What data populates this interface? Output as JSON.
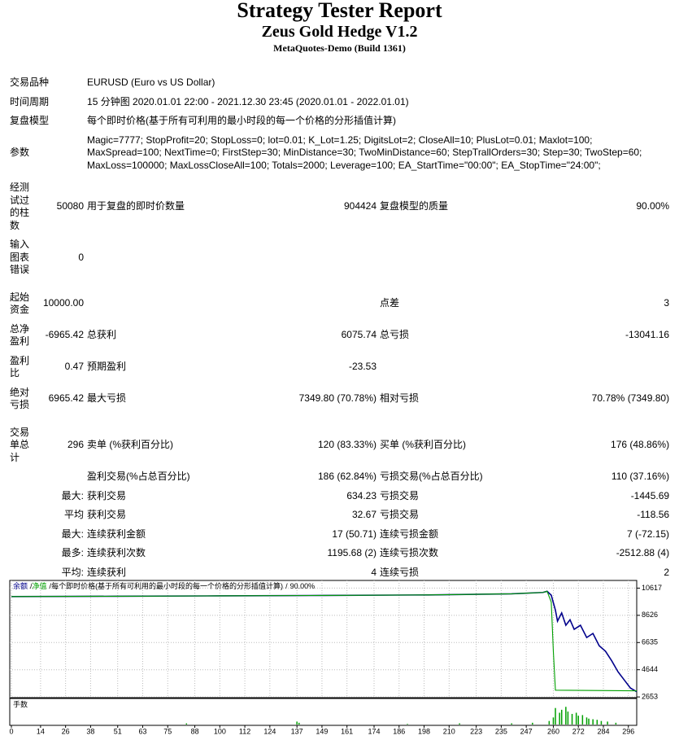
{
  "header": {
    "title": "Strategy Tester Report",
    "subtitle": "Zeus Gold Hedge V1.2",
    "build": "MetaQuotes-Demo (Build 1361)"
  },
  "rows": [
    [
      "交易品种",
      "EURUSD (Euro vs US Dollar)"
    ],
    [
      "时间周期",
      "15 分钟图 2020.01.01 22:00 - 2021.12.30 23:45 (2020.01.01 - 2022.01.01)"
    ],
    [
      "复盘模型",
      "每个即时价格(基于所有可利用的最小时段的每一个价格的分形插值计算)"
    ],
    [
      "参数",
      [
        "Magic=7777; StopProfit=20; StopLoss=0; lot=0.01; K_Lot=1.25; DigitsLot=2; CloseAll=10; PlusLot=0.01; Maxlot=100;",
        "MaxSpread=100; NextTime=0; FirstStep=30; MinDistance=30; TwoMinDistance=60; StepTrallOrders=30; Step=30; TwoStep=60;",
        "MaxLoss=100000; MaxLossCloseAll=100; Totals=2000; Leverage=100; EA_StartTime=\"00:00\"; EA_StopTime=\"24:00\";"
      ]
    ],
    [
      "经测试过的柱数",
      "50080",
      "用于复盘的即时价数量",
      "904424",
      "复盘模型的质量",
      "90.00%"
    ],
    [
      "输入图表错误",
      "0"
    ],
    [
      "起始资金",
      "10000.00",
      "点差",
      "3"
    ],
    [
      "总净盈利",
      "-6965.42",
      "总获利",
      "6075.74",
      "总亏损",
      "-13041.16"
    ],
    [
      "盈利比",
      "0.47",
      "预期盈利",
      "-23.53"
    ],
    [
      "绝对亏损",
      "6965.42",
      "最大亏损",
      "7349.80 (70.78%)",
      "相对亏损",
      "70.78% (7349.80)"
    ],
    [
      "交易单总计",
      "296",
      "卖单 (%获利百分比)",
      "120 (83.33%)",
      "买单 (%获利百分比)",
      "176 (48.86%)"
    ],
    [
      "盈利交易(%占总百分比)",
      "186 (62.84%)",
      "亏损交易(%占总百分比)",
      "110 (37.16%)"
    ],
    [
      "最大:",
      "获利交易",
      "634.23",
      "亏损交易",
      "-1445.69"
    ],
    [
      "平均",
      "获利交易",
      "32.67",
      "亏损交易",
      "-118.56"
    ],
    [
      "最大:",
      "连续获利金额",
      "17 (50.71)",
      "连续亏损金额",
      "7 (-72.15)"
    ],
    [
      "最多:",
      "连续获利次数",
      "1195.68 (2)",
      "连续亏损次数",
      "-2512.88 (4)"
    ],
    [
      "平均:",
      "连续获利",
      "4",
      "连续亏损",
      "2"
    ]
  ],
  "chart_data": {
    "type": "line",
    "legend_separator": "/",
    "legend_model": "每个即时价格(基于所有可利用的最小时段的每一个价格的分形插值计算)",
    "legend_quality": "90.00%",
    "xlim": [
      0,
      300
    ],
    "xticks": [
      0,
      14,
      26,
      38,
      51,
      63,
      75,
      88,
      100,
      112,
      124,
      137,
      149,
      161,
      174,
      186,
      198,
      210,
      223,
      235,
      247,
      260,
      272,
      284,
      296
    ],
    "ylim": [
      2600,
      11000
    ],
    "yticks": [
      2653,
      4644,
      6635,
      8626,
      10617
    ],
    "grid": true,
    "series": [
      {
        "name": "余额",
        "color": "#00008b",
        "x": [
          0,
          50,
          100,
          150,
          200,
          240,
          255,
          257,
          259,
          261,
          262,
          264,
          266,
          268,
          270,
          273,
          276,
          279,
          282,
          285,
          288,
          291,
          294,
          297,
          300
        ],
        "values": [
          10000,
          10020,
          10050,
          10080,
          10120,
          10200,
          10300,
          10385,
          10100,
          9000,
          8200,
          8800,
          7900,
          8300,
          7600,
          7900,
          7000,
          7300,
          6400,
          6000,
          5300,
          4500,
          3900,
          3300,
          3035
        ]
      },
      {
        "name": "净值",
        "color": "#00a000",
        "x": [
          0,
          50,
          100,
          150,
          200,
          240,
          255,
          257,
          259,
          260,
          261,
          300
        ],
        "values": [
          10000,
          10020,
          10050,
          10080,
          10120,
          10200,
          10300,
          10385,
          9600,
          6000,
          3150,
          3100
        ]
      }
    ],
    "volume": {
      "type": "bar",
      "label": "手数",
      "color": "#00a000",
      "ylim": [
        0,
        0.4
      ],
      "x": [
        84,
        137,
        138,
        190,
        215,
        240,
        250,
        258,
        260,
        261,
        263,
        264,
        266,
        267,
        269,
        271,
        272,
        274,
        276,
        277,
        279,
        281,
        283,
        286,
        290
      ],
      "values": [
        0.02,
        0.05,
        0.03,
        0.01,
        0.02,
        0.02,
        0.03,
        0.06,
        0.12,
        0.28,
        0.2,
        0.25,
        0.3,
        0.22,
        0.18,
        0.2,
        0.15,
        0.16,
        0.12,
        0.1,
        0.09,
        0.08,
        0.06,
        0.05,
        0.03
      ]
    }
  }
}
